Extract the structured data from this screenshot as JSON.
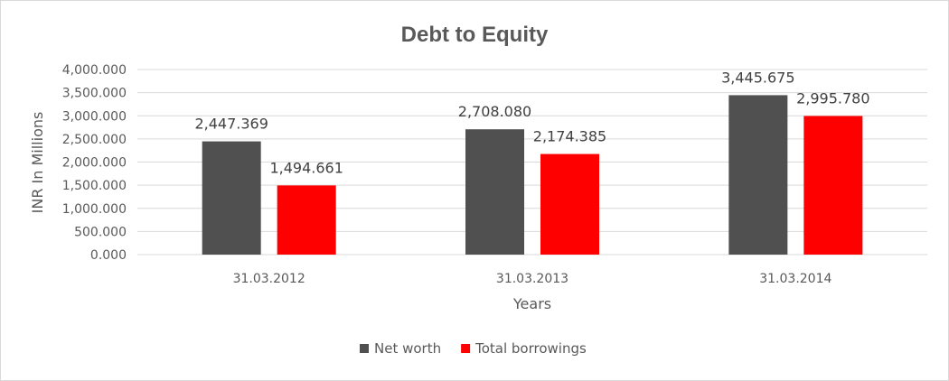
{
  "chart_data": {
    "type": "bar",
    "title": "Debt to Equity",
    "xlabel": "Years",
    "ylabel": "INR In Millions",
    "categories": [
      "31.03.2012",
      "31.03.2013",
      "31.03.2014"
    ],
    "series": [
      {
        "name": "Net worth",
        "color": "#505050",
        "values": [
          2447.369,
          2708.08,
          3445.675
        ],
        "labels": [
          "2,447.369",
          "2,708.080",
          "3,445.675"
        ]
      },
      {
        "name": "Total borrowings",
        "color": "#ff0000",
        "values": [
          1494.661,
          2174.385,
          2995.78
        ],
        "labels": [
          "1,494.661",
          "2,174.385",
          "2,995.780"
        ]
      }
    ],
    "ylim": [
      0,
      4000
    ],
    "yticks": [
      0,
      500,
      1000,
      1500,
      2000,
      2500,
      3000,
      3500,
      4000
    ],
    "ytick_labels": [
      "0.000",
      "500.000",
      "1,000.000",
      "1,500.000",
      "2,000.000",
      "2,500.000",
      "3,000.000",
      "3,500.000",
      "4,000.000"
    ],
    "grid": true,
    "legend_position": "bottom"
  }
}
